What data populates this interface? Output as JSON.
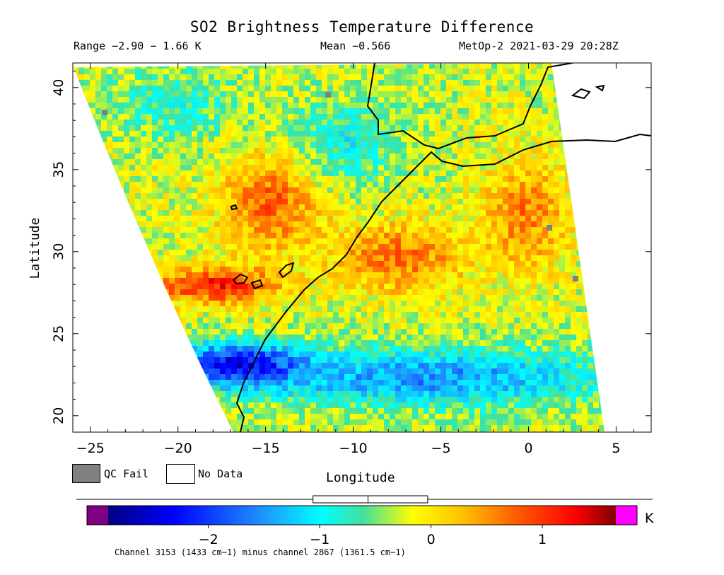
{
  "header": {
    "title": "SO2 Brightness Temperature Difference",
    "range": "Range −2.90 − 1.66 K",
    "mean": "Mean −0.566",
    "satellite_time": "MetOp-2 2021-03-29 20:28Z"
  },
  "map": {
    "xlabel": "Longitude",
    "ylabel": "Latitude",
    "lon_range": [
      -26,
      7
    ],
    "lat_range": [
      19,
      41.5
    ],
    "x_ticks": [
      {
        "value": -25,
        "label": "−25"
      },
      {
        "value": -20,
        "label": "−20"
      },
      {
        "value": -15,
        "label": "−15"
      },
      {
        "value": -10,
        "label": "−10"
      },
      {
        "value": -5,
        "label": "−5"
      },
      {
        "value": 0,
        "label": "0"
      },
      {
        "value": 5,
        "label": "5"
      }
    ],
    "y_ticks": [
      {
        "value": 20,
        "label": "20"
      },
      {
        "value": 25,
        "label": "25"
      },
      {
        "value": 30,
        "label": "30"
      },
      {
        "value": 35,
        "label": "35"
      },
      {
        "value": 40,
        "label": "40"
      }
    ]
  },
  "legend": {
    "qc_fail": "QC Fail",
    "no_data": "No Data",
    "qc_fail_color": "#808080"
  },
  "colorbar": {
    "unit": "K",
    "range": [
      -2.9,
      1.66
    ],
    "under_color": "#800080",
    "over_color": "#ff00ff",
    "ticks": [
      {
        "value": -2,
        "label": "−2"
      },
      {
        "value": -1,
        "label": "−1"
      },
      {
        "value": 0,
        "label": "0"
      },
      {
        "value": 1,
        "label": "1"
      }
    ],
    "boxplot": {
      "whisker_low": -2.9,
      "q1": -1.06,
      "median": -0.566,
      "q3": -0.03,
      "whisker_high": 1.66
    }
  },
  "footnote": "Channel 3153 (1433 cm−1) minus channel 2867 (1361.5 cm−1)"
}
